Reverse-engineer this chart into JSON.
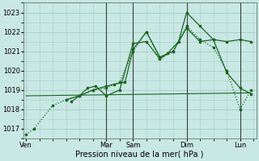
{
  "xlabel": "Pression niveau de la mer( hPa )",
  "background_color": "#c8e8e4",
  "grid_color": "#a8ccc8",
  "line_color": "#1a6620",
  "vline_color": "#336633",
  "ylim": [
    1016.5,
    1023.5
  ],
  "yticks": [
    1017,
    1018,
    1019,
    1020,
    1021,
    1022,
    1023
  ],
  "series": [
    {
      "x": [
        0.0,
        0.3,
        1.0,
        1.5,
        2.0,
        2.5,
        3.0,
        3.5,
        4.0,
        4.5,
        5.0,
        5.5,
        6.0,
        6.5,
        7.0,
        7.5,
        8.0,
        8.4
      ],
      "y": [
        1016.7,
        1017.0,
        1018.2,
        1018.5,
        1018.7,
        1019.0,
        1019.1,
        1019.4,
        1021.0,
        1022.0,
        1020.6,
        1021.0,
        1022.3,
        1021.6,
        1021.2,
        1020.0,
        1018.0,
        1019.0
      ],
      "marker": "s",
      "markersize": 2.0,
      "linewidth": 0.9,
      "linestyle": ":"
    },
    {
      "x": [
        1.5,
        2.0,
        2.5,
        3.0,
        3.3,
        3.7,
        4.0,
        4.5,
        5.0,
        5.5,
        6.0,
        6.5,
        7.0,
        7.5,
        8.0,
        8.4
      ],
      "y": [
        1018.5,
        1018.7,
        1019.0,
        1019.2,
        1019.3,
        1019.4,
        1021.1,
        1022.0,
        1020.7,
        1021.0,
        1022.2,
        1021.5,
        1021.6,
        1021.5,
        1021.6,
        1021.5
      ],
      "marker": "s",
      "markersize": 2.0,
      "linewidth": 0.9,
      "linestyle": "-"
    },
    {
      "x": [
        1.7,
        2.0,
        2.3,
        2.6,
        3.0,
        3.5,
        4.0,
        4.5,
        5.0,
        5.3,
        5.7,
        6.0,
        6.5,
        7.0,
        7.5,
        8.0,
        8.4
      ],
      "y": [
        1018.4,
        1018.7,
        1019.1,
        1019.2,
        1018.7,
        1019.0,
        1021.4,
        1021.5,
        1020.6,
        1020.9,
        1021.5,
        1023.0,
        1022.3,
        1021.6,
        1019.9,
        1019.1,
        1018.8
      ],
      "marker": "s",
      "markersize": 2.0,
      "linewidth": 0.9,
      "linestyle": "-"
    },
    {
      "x": [
        0.0,
        8.4
      ],
      "y": [
        1018.7,
        1018.85
      ],
      "marker": null,
      "markersize": 0,
      "linewidth": 0.8,
      "linestyle": "-"
    }
  ],
  "vlines": [
    {
      "x": 3.0,
      "color": "#334433",
      "lw": 0.8
    },
    {
      "x": 4.0,
      "color": "#334433",
      "lw": 0.8
    },
    {
      "x": 6.0,
      "color": "#334433",
      "lw": 0.8
    },
    {
      "x": 8.0,
      "color": "#334433",
      "lw": 0.8
    }
  ],
  "xtick_positions": [
    0.0,
    3.0,
    4.0,
    6.0,
    8.0
  ],
  "xtick_labels": [
    "Ven",
    "Mar",
    "Sam",
    "Dim",
    "Lun"
  ],
  "xlim": [
    -0.1,
    8.6
  ],
  "fig_width": 3.2,
  "fig_height": 2.0,
  "dpi": 100
}
